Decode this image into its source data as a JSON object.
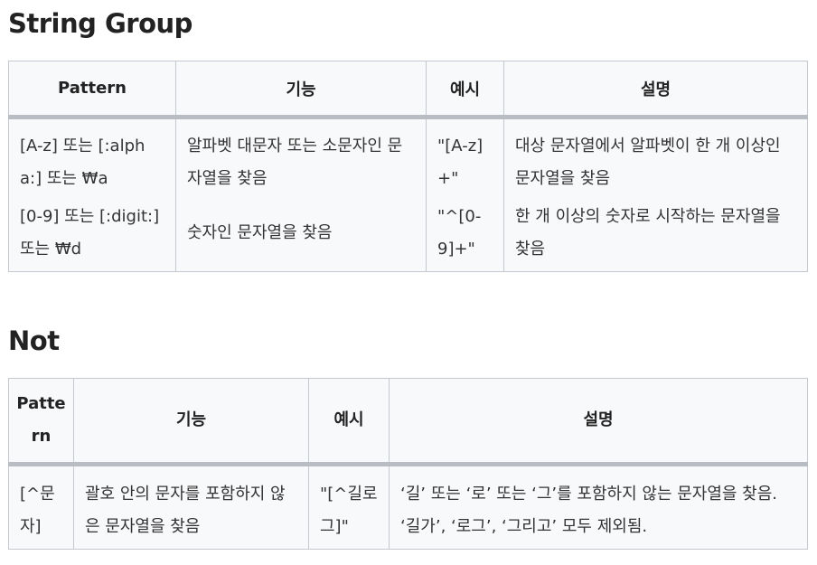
{
  "sections": [
    {
      "title": "String Group",
      "headers": [
        "Pattern",
        "기능",
        "예시",
        "설명"
      ],
      "rows": [
        {
          "pattern": "[A-z] 또는 [:alpha:] 또는 ₩a",
          "feature": "알파벳 대문자 또는 소문자인 문자열을 찾음",
          "example": "\"[A-z]+\"",
          "description": "대상 문자열에서 알파벳이 한 개 이상인 문자열을 찾음"
        },
        {
          "pattern": "[0-9] 또는 [:digit:] 또는 ₩d",
          "feature": "숫자인 문자열을 찾음",
          "example": "\"^[0-9]+\"",
          "description": "한 개 이상의 숫자로 시작하는 문자열을 찾음"
        }
      ]
    },
    {
      "title": "Not",
      "headers": [
        "Pattern",
        "기능",
        "예시",
        "설명"
      ],
      "rows": [
        {
          "pattern": "[^문자]",
          "feature": "괄호 안의 문자를 포함하지 않은 문자열을 찾음",
          "example": "\"[^길로그]\"",
          "description": "‘길’ 또는 ‘로’ 또는 ‘그’를 포함하지 않는 문자열을 찾음. ‘길가’, ‘로그’, ‘그리고’ 모두 제외됨."
        }
      ]
    }
  ]
}
